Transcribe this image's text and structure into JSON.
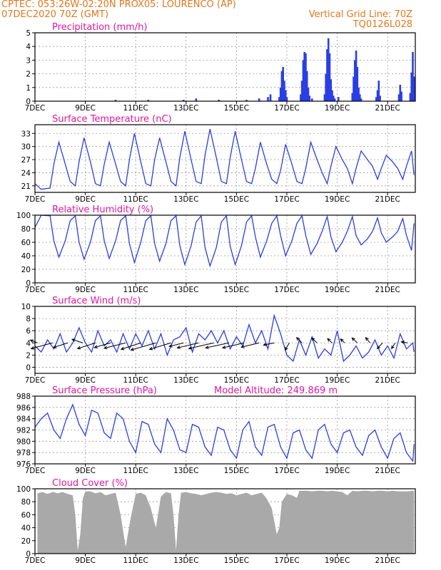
{
  "header": {
    "line1": "CPTEC:   053:26W-02:20N   PROX05: LOURENCO (AP)",
    "line2_left": "07DEC2020 70Z (GMT)",
    "line2_right": "Vertical Grid Line: 70Z",
    "line3_right": "TQ0126L028"
  },
  "colors": {
    "header": "#e0781e",
    "title": "#e0189e",
    "series": "#2a3ee6",
    "cloud": "#a9a9a9",
    "frame": "#000000"
  },
  "x_tick_labels": [
    "7DEC",
    "9DEC",
    "11DEC",
    "13DEC",
    "15DEC",
    "17DEC",
    "19DEC",
    "21DEC"
  ],
  "x_days": [
    7,
    9,
    11,
    13,
    15,
    17,
    19,
    21
  ],
  "x_range": [
    7,
    22.1
  ],
  "chart_data": [
    {
      "type": "bar",
      "title": "Precipitation (mm/h)",
      "ylim": [
        0,
        5
      ],
      "yticks": [
        0,
        1,
        2,
        3,
        4,
        5
      ],
      "bar_width_days": 0.04,
      "x": [
        10.2,
        11.5,
        12.9,
        13.4,
        14.3,
        15.4,
        15.9,
        16.25,
        16.35,
        16.7,
        16.75,
        16.8,
        16.85,
        16.9,
        16.95,
        17.0,
        17.55,
        17.6,
        17.65,
        17.7,
        17.75,
        17.8,
        17.85,
        17.9,
        18.0,
        18.5,
        18.55,
        18.6,
        18.65,
        18.7,
        18.75,
        18.8,
        18.85,
        18.9,
        19.05,
        19.6,
        19.65,
        19.7,
        19.75,
        19.8,
        19.85,
        19.9,
        19.95,
        20.55,
        20.6,
        20.65,
        20.7,
        21.45,
        21.5,
        21.55,
        21.9,
        21.95,
        22.0,
        22.05
      ],
      "y": [
        0.1,
        0.1,
        0.1,
        0.2,
        0.1,
        0.1,
        0.2,
        0.3,
        0.5,
        0.3,
        1.0,
        2.2,
        2.5,
        1.5,
        0.8,
        0.3,
        0.5,
        1.5,
        3.0,
        3.6,
        3.5,
        2.2,
        1.0,
        0.4,
        0.2,
        0.5,
        2.0,
        3.8,
        4.6,
        3.5,
        1.6,
        0.8,
        0.4,
        0.2,
        0.3,
        0.6,
        1.8,
        3.0,
        3.7,
        2.5,
        1.0,
        0.5,
        0.2,
        0.3,
        0.8,
        1.5,
        0.4,
        0.5,
        1.2,
        0.7,
        0.6,
        2.1,
        3.6,
        1.8
      ]
    },
    {
      "type": "line",
      "title": "Surface Temperature (nC)",
      "ylim": [
        19.5,
        35
      ],
      "yticks": [
        21,
        24,
        27,
        30,
        33
      ],
      "series": [
        {
          "x": [
            7.0,
            7.25,
            7.6,
            7.75,
            7.95,
            8.2,
            8.4,
            8.6,
            8.75,
            8.95,
            9.2,
            9.4,
            9.6,
            9.75,
            9.95,
            10.2,
            10.4,
            10.6,
            10.75,
            10.95,
            11.2,
            11.4,
            11.6,
            11.75,
            11.95,
            12.2,
            12.4,
            12.6,
            12.75,
            12.95,
            13.2,
            13.4,
            13.6,
            13.75,
            13.95,
            14.2,
            14.4,
            14.6,
            14.75,
            14.95,
            15.2,
            15.4,
            15.6,
            15.75,
            15.95,
            16.2,
            16.4,
            16.6,
            16.75,
            16.95,
            17.2,
            17.4,
            17.6,
            17.75,
            17.95,
            18.2,
            18.4,
            18.6,
            18.75,
            18.95,
            19.2,
            19.4,
            19.6,
            19.75,
            19.95,
            20.2,
            20.4,
            20.6,
            20.75,
            20.95,
            21.2,
            21.4,
            21.6,
            21.75,
            21.95,
            22.05
          ],
          "y": [
            21.5,
            20.2,
            20.5,
            26.0,
            31.0,
            26.0,
            22.0,
            21.0,
            26.5,
            32.0,
            26.5,
            21.5,
            21.0,
            26.0,
            31.0,
            26.0,
            22.0,
            21.0,
            27.0,
            33.0,
            26.5,
            21.5,
            21.0,
            27.0,
            32.0,
            26.5,
            22.0,
            21.0,
            27.5,
            33.5,
            27.0,
            22.0,
            21.5,
            28.0,
            34.0,
            27.5,
            22.0,
            21.5,
            27.5,
            33.5,
            27.0,
            22.0,
            21.5,
            25.0,
            31.0,
            26.0,
            22.5,
            21.5,
            24.5,
            30.5,
            26.0,
            22.0,
            21.5,
            25.0,
            31.0,
            27.0,
            24.0,
            21.5,
            25.5,
            30.0,
            27.0,
            25.0,
            21.5,
            25.0,
            29.0,
            27.0,
            25.5,
            22.5,
            25.0,
            28.0,
            26.5,
            25.0,
            22.5,
            25.5,
            29.0,
            23.5
          ]
        }
      ]
    },
    {
      "type": "line",
      "title": "Relative Humidity (%)",
      "ylim": [
        0,
        100
      ],
      "yticks": [
        0,
        20,
        40,
        60,
        80,
        100
      ],
      "series": [
        {
          "x": [
            7.0,
            7.25,
            7.6,
            7.75,
            7.95,
            8.2,
            8.4,
            8.6,
            8.75,
            8.95,
            9.2,
            9.4,
            9.6,
            9.75,
            9.95,
            10.2,
            10.4,
            10.6,
            10.75,
            10.95,
            11.2,
            11.4,
            11.6,
            11.75,
            11.95,
            12.2,
            12.4,
            12.6,
            12.75,
            12.95,
            13.2,
            13.4,
            13.6,
            13.75,
            13.95,
            14.2,
            14.4,
            14.6,
            14.75,
            14.95,
            15.2,
            15.4,
            15.6,
            15.75,
            15.95,
            16.2,
            16.4,
            16.6,
            16.75,
            16.95,
            17.2,
            17.4,
            17.6,
            17.75,
            17.95,
            18.2,
            18.4,
            18.6,
            18.75,
            18.95,
            19.2,
            19.4,
            19.6,
            19.75,
            19.95,
            20.2,
            20.4,
            20.6,
            20.75,
            20.95,
            21.2,
            21.4,
            21.6,
            21.75,
            21.95,
            22.05
          ],
          "y": [
            82,
            100,
            99,
            62,
            38,
            62,
            92,
            99,
            60,
            35,
            60,
            92,
            99,
            62,
            36,
            62,
            92,
            99,
            58,
            30,
            60,
            92,
            99,
            58,
            32,
            58,
            92,
            99,
            55,
            27,
            55,
            90,
            99,
            52,
            25,
            52,
            90,
            99,
            54,
            27,
            55,
            90,
            99,
            68,
            38,
            62,
            88,
            99,
            70,
            40,
            62,
            88,
            99,
            70,
            42,
            58,
            76,
            98,
            68,
            46,
            60,
            76,
            98,
            70,
            56,
            65,
            76,
            96,
            74,
            60,
            68,
            76,
            95,
            70,
            48,
            88
          ]
        }
      ]
    },
    {
      "type": "line",
      "title": "Surface Wind (m/s)",
      "ylim": [
        -1,
        10
      ],
      "yticks": [
        0,
        2,
        4,
        6,
        8,
        10
      ],
      "series": [
        {
          "x": [
            7.0,
            7.25,
            7.5,
            7.75,
            8.0,
            8.25,
            8.5,
            8.75,
            9.0,
            9.25,
            9.5,
            9.75,
            10.0,
            10.25,
            10.5,
            10.75,
            11.0,
            11.25,
            11.5,
            11.75,
            12.0,
            12.25,
            12.5,
            12.75,
            13.0,
            13.25,
            13.5,
            13.75,
            14.0,
            14.25,
            14.5,
            14.75,
            15.0,
            15.25,
            15.5,
            15.75,
            16.0,
            16.25,
            16.5,
            16.75,
            17.0,
            17.25,
            17.5,
            17.75,
            18.0,
            18.25,
            18.5,
            18.75,
            19.0,
            19.25,
            19.5,
            19.75,
            20.0,
            20.25,
            20.5,
            20.75,
            21.0,
            21.25,
            21.5,
            21.75,
            22.0,
            22.05
          ],
          "y": [
            3.5,
            2.5,
            4.5,
            3.0,
            5.5,
            2.5,
            4.0,
            6.5,
            4.0,
            2.5,
            6.0,
            3.5,
            4.5,
            2.5,
            5.5,
            3.0,
            5.5,
            3.5,
            6.0,
            3.0,
            5.5,
            2.0,
            4.5,
            5.0,
            6.5,
            2.5,
            5.5,
            4.5,
            6.0,
            4.0,
            6.0,
            3.0,
            5.0,
            3.5,
            7.0,
            4.0,
            6.0,
            3.0,
            8.5,
            5.5,
            2.0,
            1.0,
            4.5,
            2.0,
            5.0,
            1.5,
            3.0,
            2.0,
            6.0,
            1.0,
            2.0,
            3.5,
            1.5,
            2.5,
            4.5,
            2.0,
            3.5,
            1.5,
            5.5,
            3.0,
            4.0,
            2.5
          ]
        }
      ],
      "wind_arrows": {
        "x": [
          7.1,
          7.7,
          8.3,
          8.9,
          9.4,
          10.0,
          10.6,
          11.2,
          11.8,
          12.4,
          12.9,
          13.5,
          14.1,
          14.7,
          15.3,
          15.9,
          16.5,
          17.1,
          17.6,
          18.2,
          18.8,
          19.3,
          19.8,
          20.3,
          20.8,
          21.3,
          21.8
        ],
        "u": [
          -2.0,
          -6.0,
          -4.0,
          -3.0,
          -5.0,
          -4.5,
          -6.0,
          -5.5,
          -7.0,
          -6.0,
          -4.0,
          -6.0,
          -7.0,
          -6.5,
          -6.0,
          -5.0,
          -3.0,
          -1.2,
          -1.5,
          -1.5,
          -1.3,
          -1.2,
          -1.5,
          -1.2,
          -1.5,
          -1.0,
          -1.8
        ],
        "v": [
          0.8,
          -1.6,
          -1.3,
          1.0,
          -1.6,
          -1.3,
          -1.5,
          -1.8,
          -2.0,
          -1.8,
          -1.0,
          -1.4,
          -1.6,
          -1.4,
          -1.4,
          -1.2,
          -0.6,
          -2.0,
          1.5,
          1.4,
          1.2,
          1.1,
          1.4,
          1.5,
          -1.6,
          -1.6,
          0.3
        ],
        "y_base": 4.0
      }
    },
    {
      "type": "line",
      "title": "Surface Pressure (hPa)",
      "annotation": "Model Altitude: 249.869 m",
      "ylim": [
        976,
        988
      ],
      "yticks": [
        976,
        978,
        980,
        982,
        984,
        986,
        988
      ],
      "series": [
        {
          "x": [
            7.0,
            7.25,
            7.5,
            7.75,
            8.0,
            8.25,
            8.5,
            8.75,
            9.0,
            9.25,
            9.5,
            9.75,
            10.0,
            10.25,
            10.5,
            10.75,
            11.0,
            11.25,
            11.5,
            11.75,
            12.0,
            12.25,
            12.5,
            12.75,
            13.0,
            13.25,
            13.5,
            13.75,
            14.0,
            14.25,
            14.5,
            14.75,
            15.0,
            15.25,
            15.5,
            15.75,
            16.0,
            16.25,
            16.5,
            16.75,
            17.0,
            17.25,
            17.5,
            17.75,
            18.0,
            18.25,
            18.5,
            18.75,
            19.0,
            19.25,
            19.5,
            19.75,
            20.0,
            20.25,
            20.5,
            20.75,
            21.0,
            21.25,
            21.5,
            21.75,
            22.0,
            22.05
          ],
          "y": [
            982.5,
            984.0,
            985.0,
            982.0,
            980.5,
            984.0,
            986.5,
            983.0,
            981.0,
            985.5,
            985.0,
            981.5,
            980.5,
            985.0,
            984.0,
            980.0,
            978.0,
            983.5,
            983.0,
            979.5,
            978.0,
            984.0,
            982.0,
            978.5,
            978.0,
            983.0,
            982.5,
            979.0,
            977.5,
            982.5,
            982.0,
            978.5,
            977.0,
            982.0,
            983.5,
            979.0,
            977.5,
            982.5,
            983.0,
            979.0,
            977.0,
            981.5,
            982.0,
            978.5,
            977.0,
            982.0,
            983.0,
            979.5,
            978.0,
            981.5,
            982.0,
            979.0,
            977.5,
            981.0,
            982.0,
            979.0,
            977.0,
            980.5,
            981.5,
            978.0,
            976.5,
            979.5
          ]
        }
      ]
    },
    {
      "type": "area",
      "title": "Cloud Cover (%)",
      "ylim": [
        0,
        100
      ],
      "yticks": [
        0,
        20,
        40,
        60,
        80,
        100
      ],
      "series": [
        {
          "x": [
            7.1,
            7.3,
            7.5,
            7.7,
            7.9,
            8.1,
            8.3,
            8.5,
            8.6,
            8.7,
            8.8,
            8.9,
            9.0,
            9.2,
            9.4,
            9.6,
            9.8,
            10.0,
            10.2,
            10.4,
            10.6,
            10.8,
            11.0,
            11.2,
            11.4,
            11.6,
            11.8,
            12.0,
            12.2,
            12.4,
            12.5,
            12.6,
            12.7,
            12.8,
            13.0,
            13.2,
            13.4,
            13.6,
            13.8,
            14.0,
            14.2,
            14.4,
            14.6,
            14.8,
            15.0,
            15.2,
            15.4,
            15.6,
            15.8,
            16.0,
            16.2,
            16.4,
            16.5,
            16.6,
            16.7,
            16.8,
            17.0,
            17.2,
            17.4,
            17.5,
            17.6,
            17.8,
            18.0,
            18.2,
            18.4,
            18.6,
            18.8,
            19.0,
            19.2,
            19.4,
            19.6,
            19.8,
            20.0,
            20.2,
            20.4,
            20.6,
            20.8,
            21.0,
            21.2,
            21.4,
            21.6,
            21.8,
            22.0,
            22.05
          ],
          "y": [
            93,
            95,
            92,
            95,
            93,
            95,
            92,
            90,
            60,
            5,
            30,
            85,
            96,
            96,
            93,
            95,
            90,
            92,
            94,
            60,
            10,
            55,
            92,
            94,
            90,
            70,
            40,
            88,
            95,
            93,
            60,
            5,
            60,
            94,
            95,
            93,
            92,
            90,
            92,
            94,
            95,
            94,
            92,
            93,
            90,
            92,
            94,
            90,
            92,
            94,
            85,
            70,
            50,
            30,
            40,
            80,
            92,
            90,
            86,
            97,
            97,
            97,
            96,
            97,
            97,
            96,
            97,
            96,
            95,
            90,
            97,
            96,
            97,
            97,
            96,
            97,
            97,
            96,
            97,
            96,
            96,
            96,
            97,
            97
          ]
        }
      ]
    }
  ]
}
